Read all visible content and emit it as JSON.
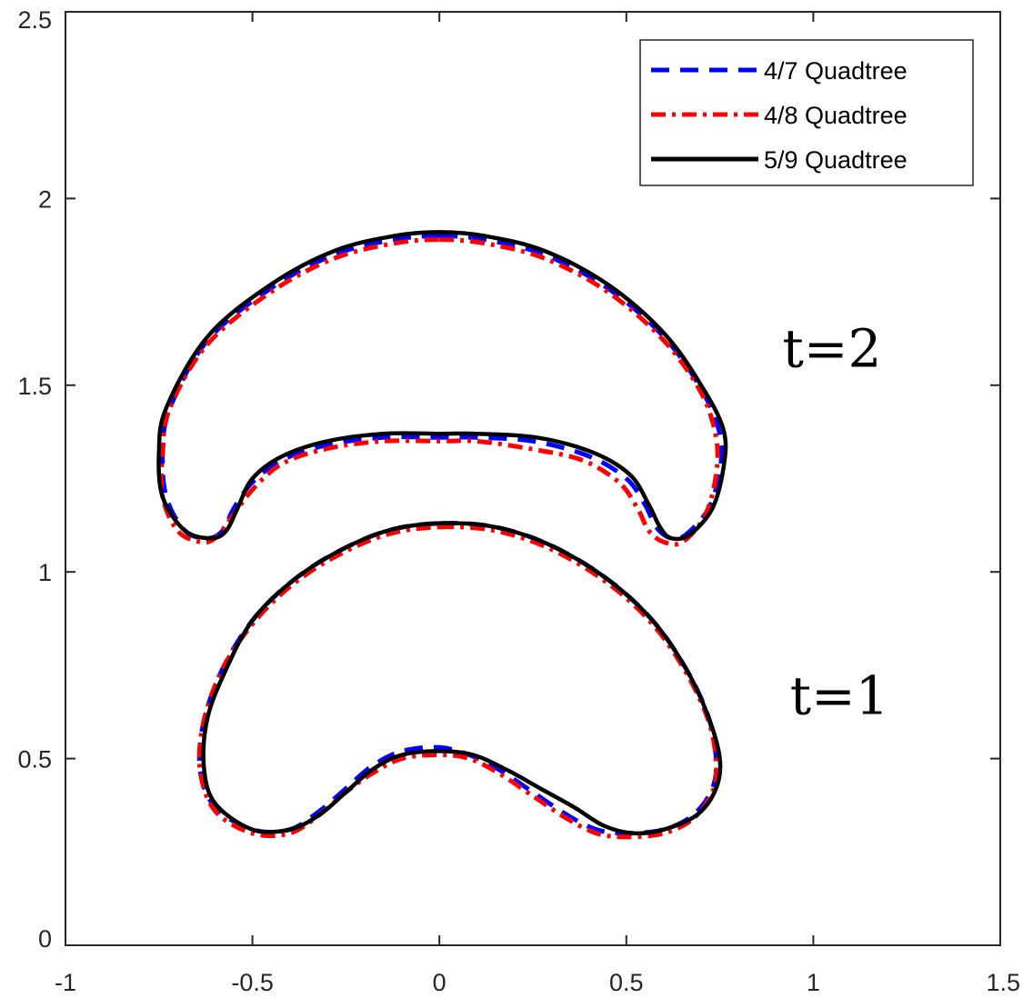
{
  "chart_data": {
    "type": "line",
    "title": "",
    "xlabel": "",
    "ylabel": "",
    "xlim": [
      -1,
      1.5
    ],
    "ylim": [
      0,
      2.5
    ],
    "xticks": [
      -1,
      -0.5,
      0,
      0.5,
      1,
      1.5
    ],
    "xtick_labels": [
      "-1",
      "-0.5",
      "0",
      "0.5",
      "1",
      "1.5"
    ],
    "yticks": [
      0,
      0.5,
      1,
      1.5,
      2,
      2.5
    ],
    "ytick_labels": [
      "0",
      "0.5",
      "1",
      "1.5",
      "2",
      "2.5"
    ],
    "grid": false,
    "legend_position": "top-right",
    "annotations": [
      {
        "text": "t=2",
        "x": 1.05,
        "y": 1.55
      },
      {
        "text": "t=1",
        "x": 1.07,
        "y": 0.62
      }
    ],
    "series": [
      {
        "name": "4/7 Quadtree",
        "color": "#0000ff",
        "style": "dashed",
        "curves": [
          {
            "x": [
              0.0,
              0.12,
              0.28,
              0.45,
              0.6,
              0.7,
              0.75,
              0.75,
              0.72,
              0.66,
              0.62,
              0.58,
              0.55,
              0.5,
              0.4,
              0.25,
              0.1,
              0.0,
              -0.15,
              -0.3,
              -0.42,
              -0.5,
              -0.55,
              -0.58,
              -0.62,
              -0.68,
              -0.73,
              -0.74,
              -0.72,
              -0.62,
              -0.45,
              -0.28,
              -0.12,
              0.0
            ],
            "y": [
              1.9,
              1.89,
              1.85,
              1.76,
              1.63,
              1.49,
              1.37,
              1.27,
              1.17,
              1.1,
              1.09,
              1.12,
              1.18,
              1.25,
              1.31,
              1.35,
              1.36,
              1.36,
              1.36,
              1.34,
              1.3,
              1.24,
              1.17,
              1.11,
              1.09,
              1.11,
              1.2,
              1.32,
              1.44,
              1.62,
              1.76,
              1.85,
              1.89,
              1.9
            ]
          },
          {
            "x": [
              0.0,
              0.15,
              0.3,
              0.45,
              0.57,
              0.66,
              0.72,
              0.74,
              0.73,
              0.68,
              0.6,
              0.5,
              0.42,
              0.34,
              0.25,
              0.16,
              0.08,
              0.0,
              -0.1,
              -0.18,
              -0.25,
              -0.32,
              -0.4,
              -0.5,
              -0.6,
              -0.64,
              -0.63,
              -0.58,
              -0.5,
              -0.4,
              -0.28,
              -0.14,
              0.0
            ],
            "y": [
              1.13,
              1.12,
              1.07,
              0.98,
              0.87,
              0.74,
              0.61,
              0.5,
              0.42,
              0.35,
              0.31,
              0.3,
              0.31,
              0.35,
              0.41,
              0.47,
              0.51,
              0.53,
              0.52,
              0.48,
              0.42,
              0.36,
              0.31,
              0.31,
              0.37,
              0.47,
              0.6,
              0.74,
              0.87,
              0.97,
              1.05,
              1.11,
              1.13
            ]
          }
        ]
      },
      {
        "name": "4/8 Quadtree",
        "color": "#ff0000",
        "style": "dashdot",
        "curves": [
          {
            "x": [
              0.0,
              0.12,
              0.28,
              0.45,
              0.6,
              0.7,
              0.74,
              0.74,
              0.71,
              0.65,
              0.6,
              0.56,
              0.53,
              0.48,
              0.38,
              0.24,
              0.1,
              0.0,
              -0.15,
              -0.3,
              -0.42,
              -0.5,
              -0.56,
              -0.6,
              -0.64,
              -0.7,
              -0.74,
              -0.74,
              -0.72,
              -0.62,
              -0.45,
              -0.28,
              -0.12,
              0.0
            ],
            "y": [
              1.89,
              1.88,
              1.84,
              1.75,
              1.62,
              1.48,
              1.36,
              1.26,
              1.15,
              1.08,
              1.08,
              1.11,
              1.17,
              1.24,
              1.3,
              1.33,
              1.35,
              1.35,
              1.35,
              1.33,
              1.29,
              1.22,
              1.14,
              1.09,
              1.08,
              1.11,
              1.2,
              1.32,
              1.44,
              1.61,
              1.75,
              1.84,
              1.88,
              1.89
            ]
          },
          {
            "x": [
              0.0,
              0.15,
              0.3,
              0.45,
              0.57,
              0.66,
              0.72,
              0.74,
              0.73,
              0.68,
              0.6,
              0.5,
              0.42,
              0.34,
              0.25,
              0.16,
              0.08,
              0.0,
              -0.1,
              -0.18,
              -0.25,
              -0.32,
              -0.4,
              -0.5,
              -0.6,
              -0.64,
              -0.63,
              -0.58,
              -0.5,
              -0.4,
              -0.28,
              -0.14,
              0.0
            ],
            "y": [
              1.12,
              1.11,
              1.06,
              0.97,
              0.86,
              0.73,
              0.6,
              0.49,
              0.41,
              0.34,
              0.3,
              0.29,
              0.3,
              0.34,
              0.4,
              0.46,
              0.5,
              0.51,
              0.5,
              0.46,
              0.41,
              0.35,
              0.3,
              0.3,
              0.36,
              0.47,
              0.6,
              0.74,
              0.86,
              0.96,
              1.04,
              1.1,
              1.12
            ]
          }
        ]
      },
      {
        "name": "5/9 Quadtree",
        "color": "#000000",
        "style": "solid",
        "curves": [
          {
            "x": [
              0.0,
              0.12,
              0.28,
              0.45,
              0.6,
              0.7,
              0.76,
              0.76,
              0.73,
              0.67,
              0.62,
              0.59,
              0.56,
              0.51,
              0.41,
              0.26,
              0.1,
              0.0,
              -0.15,
              -0.3,
              -0.42,
              -0.5,
              -0.54,
              -0.57,
              -0.61,
              -0.68,
              -0.74,
              -0.75,
              -0.73,
              -0.62,
              -0.45,
              -0.28,
              -0.12,
              0.0
            ],
            "y": [
              1.91,
              1.9,
              1.86,
              1.77,
              1.64,
              1.5,
              1.38,
              1.28,
              1.17,
              1.1,
              1.09,
              1.12,
              1.18,
              1.26,
              1.32,
              1.36,
              1.37,
              1.37,
              1.37,
              1.35,
              1.31,
              1.25,
              1.17,
              1.11,
              1.09,
              1.11,
              1.2,
              1.32,
              1.44,
              1.63,
              1.77,
              1.86,
              1.9,
              1.91
            ]
          },
          {
            "x": [
              0.0,
              0.15,
              0.3,
              0.45,
              0.57,
              0.66,
              0.72,
              0.75,
              0.74,
              0.69,
              0.6,
              0.52,
              0.44,
              0.36,
              0.27,
              0.18,
              0.09,
              0.0,
              -0.1,
              -0.18,
              -0.25,
              -0.32,
              -0.4,
              -0.5,
              -0.6,
              -0.63,
              -0.62,
              -0.57,
              -0.5,
              -0.4,
              -0.28,
              -0.14,
              0.0
            ],
            "y": [
              1.13,
              1.12,
              1.07,
              0.98,
              0.87,
              0.74,
              0.61,
              0.5,
              0.42,
              0.35,
              0.31,
              0.3,
              0.32,
              0.37,
              0.42,
              0.47,
              0.51,
              0.52,
              0.51,
              0.47,
              0.41,
              0.35,
              0.31,
              0.31,
              0.38,
              0.48,
              0.61,
              0.74,
              0.87,
              0.97,
              1.05,
              1.11,
              1.13
            ]
          }
        ]
      }
    ]
  }
}
